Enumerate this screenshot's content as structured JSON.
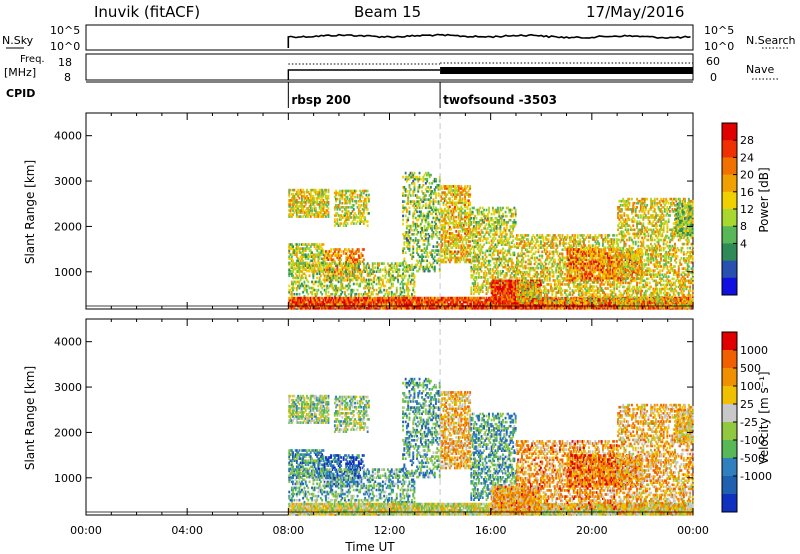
{
  "header": {
    "station": "Inuvik (fitACF)",
    "beam": "Beam 15",
    "date": "17/May/2016"
  },
  "side_labels": {
    "nsky": "N.Sky",
    "freq": "Freq.",
    "freq_unit": "[MHz]",
    "cpid": "CPID",
    "nsearch": "N.Search",
    "nave": "Nave"
  },
  "top_axes": {
    "nsky_ticks": [
      "10^5",
      "10^0"
    ],
    "nsearch_ticks": [
      "10^5",
      "10^0"
    ],
    "freq_ticks": [
      "18",
      "8"
    ],
    "nave_ticks": [
      "60",
      "0"
    ]
  },
  "cpid_segments": [
    {
      "start_hour": 8,
      "label": "rbsp 200"
    },
    {
      "start_hour": 14,
      "label": "twofsound -3503"
    }
  ],
  "chart_data": [
    {
      "type": "heatmap",
      "name": "power",
      "ylabel": "Slant Range [km]",
      "xlabel": "",
      "xlim": [
        0,
        24
      ],
      "ylim": [
        180,
        4500
      ],
      "yticks": [
        "1000",
        "2000",
        "3000",
        "4000"
      ],
      "colorbar": {
        "label": "Power [dB]",
        "ticks": [
          "28",
          "24",
          "20",
          "16",
          "12",
          "8",
          "4"
        ],
        "colors": [
          "#1010e0",
          "#2850b0",
          "#2e8b57",
          "#58b858",
          "#a8d830",
          "#f0d000",
          "#f0a000",
          "#f07000",
          "#f03000",
          "#e00000"
        ]
      }
    },
    {
      "type": "heatmap",
      "name": "velocity",
      "ylabel": "Slant Range [km]",
      "xlabel": "Time UT",
      "xlim": [
        0,
        24
      ],
      "ylim": [
        180,
        4500
      ],
      "yticks": [
        "1000",
        "2000",
        "3000",
        "4000"
      ],
      "xticks": [
        "00:00",
        "04:00",
        "08:00",
        "12:00",
        "16:00",
        "20:00",
        "00:00"
      ],
      "colorbar": {
        "label": "Velocity [m s⁻¹]",
        "ticks": [
          "1000",
          "500",
          "100",
          "25",
          "-25",
          "-100",
          "-500",
          "-1000"
        ],
        "colors": [
          "#1030c0",
          "#2060b0",
          "#3080c0",
          "#58b858",
          "#90c840",
          "#c8c8c8",
          "#f0c000",
          "#f09000",
          "#f06000",
          "#e00000"
        ]
      }
    }
  ]
}
